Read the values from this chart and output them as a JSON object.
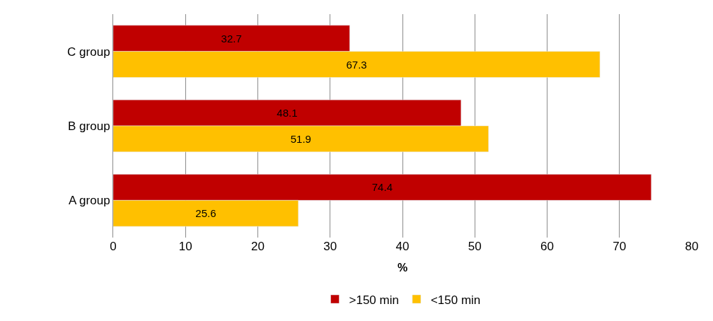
{
  "chart_data": {
    "type": "bar",
    "orientation": "horizontal",
    "categories": [
      "C group",
      "B group",
      "A group"
    ],
    "series": [
      {
        "name": ">150 min",
        "color": "#c00000",
        "values": [
          32.7,
          48.1,
          74.4
        ]
      },
      {
        "name": "<150 min",
        "color": "#ffc000",
        "values": [
          67.3,
          51.9,
          25.6
        ]
      }
    ],
    "xlabel": "%",
    "xlim": [
      0,
      80
    ],
    "xticks": [
      0,
      10,
      20,
      30,
      40,
      50,
      60,
      70,
      80
    ],
    "grid": "x",
    "legend": "bottom",
    "data_labels": true
  }
}
